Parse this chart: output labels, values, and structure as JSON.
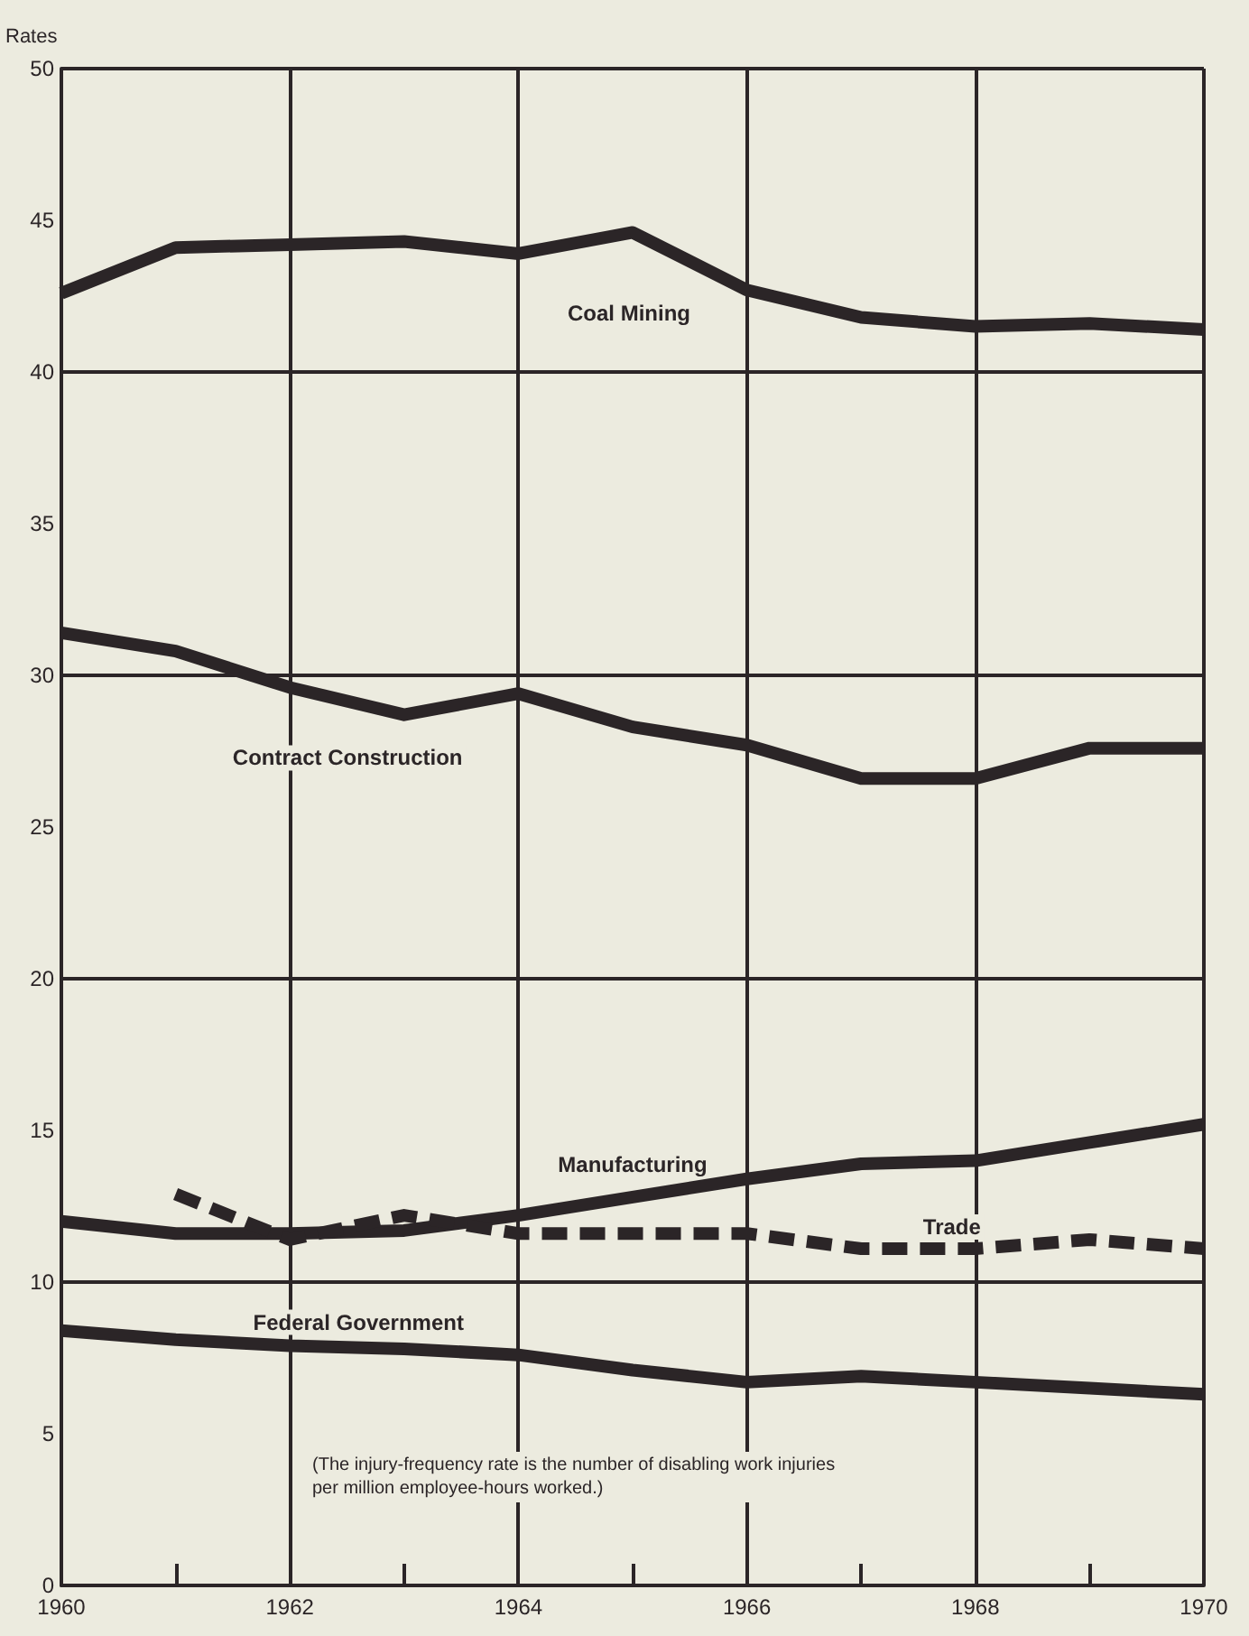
{
  "chart_data": {
    "type": "line",
    "ylabel": "Rates",
    "x": [
      1960,
      1961,
      1962,
      1963,
      1964,
      1965,
      1966,
      1967,
      1968,
      1969,
      1970
    ],
    "series": [
      {
        "name": "Coal Mining",
        "color": "#2b2527",
        "values": [
          42.6,
          44.1,
          44.2,
          44.3,
          43.9,
          44.6,
          42.7,
          41.8,
          41.5,
          41.6,
          41.4
        ]
      },
      {
        "name": "Contract Construction",
        "color": "#2b2527",
        "values": [
          31.4,
          30.8,
          29.6,
          28.7,
          29.4,
          28.3,
          27.7,
          26.6,
          26.6,
          27.6,
          27.6
        ]
      },
      {
        "name": "Manufacturing",
        "color": "#2b2527",
        "values": [
          12.0,
          11.6,
          11.6,
          11.7,
          12.2,
          12.8,
          13.4,
          13.9,
          14.0,
          14.6,
          15.2
        ]
      },
      {
        "name": "Trade",
        "color": "#2b2527",
        "line_style": "dashed",
        "values": [
          null,
          12.9,
          11.4,
          12.2,
          11.6,
          11.6,
          11.6,
          11.1,
          11.1,
          11.4,
          11.1
        ]
      },
      {
        "name": "Federal Government",
        "color": "#2b2527",
        "values": [
          8.4,
          8.1,
          7.9,
          7.8,
          7.6,
          7.1,
          6.7,
          6.9,
          6.7,
          6.5,
          6.3
        ]
      }
    ],
    "xlim": [
      1960,
      1970
    ],
    "xticks": [
      1960,
      {
        "value": 1961,
        "label": null
      },
      1962,
      {
        "value": 1963,
        "label": null
      },
      1964,
      {
        "value": 1965,
        "label": null
      },
      1966,
      {
        "value": 1967,
        "label": null
      },
      1968,
      {
        "value": 1969,
        "label": null
      },
      1970
    ],
    "ylim": [
      0,
      50
    ],
    "yticks": [
      0,
      5,
      10,
      15,
      20,
      25,
      30,
      35,
      40,
      45,
      50
    ],
    "grid": true,
    "marker": "none",
    "line_style": "solid",
    "annotations": [
      "(The injury-frequency rate is the number of disabling work injuries per million employee-hours worked.)"
    ]
  }
}
